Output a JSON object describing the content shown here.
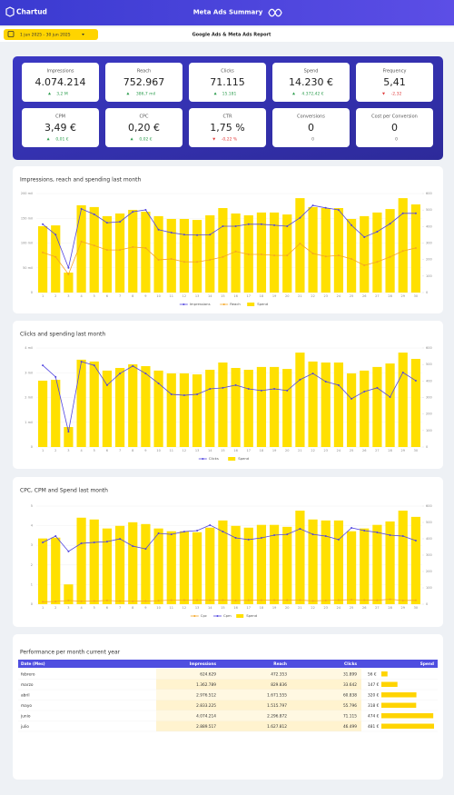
{
  "header": {
    "brand": "Chartud",
    "title": "Meta Ads Summary",
    "date_range": "1 jun 2025 - 30 jun 2025",
    "report": "Google Ads & Meta Ads Report"
  },
  "kpis": [
    {
      "label": "Impressions",
      "value": "4.074.214",
      "delta": "3,2 M",
      "direction": "up"
    },
    {
      "label": "Reach",
      "value": "752.967",
      "delta": "386,7 mil",
      "direction": "up"
    },
    {
      "label": "Clicks",
      "value": "71.115",
      "delta": "15.181",
      "direction": "up"
    },
    {
      "label": "Spend",
      "value": "14.230 €",
      "delta": "4.372,42 €",
      "direction": "up"
    },
    {
      "label": "Frequency",
      "value": "5,41",
      "delta": "-2,32",
      "direction": "down"
    },
    {
      "label": "CPM",
      "value": "3,49 €",
      "delta": "0,01 €",
      "direction": "up"
    },
    {
      "label": "CPC",
      "value": "0,20 €",
      "delta": "0,02 €",
      "direction": "up"
    },
    {
      "label": "CTR",
      "value": "1,75 %",
      "delta": "-0,22 %",
      "direction": "down"
    },
    {
      "label": "Conversions",
      "value": "0",
      "delta": "0"
    },
    {
      "label": "Cost per Conversion",
      "value": "0",
      "delta": "0"
    }
  ],
  "chart_data": [
    {
      "type": "combo",
      "title": "Impressions, reach and spending last month",
      "categories": [
        1,
        2,
        3,
        4,
        5,
        6,
        7,
        8,
        9,
        10,
        11,
        12,
        13,
        14,
        15,
        16,
        17,
        18,
        19,
        20,
        21,
        22,
        23,
        24,
        25,
        26,
        27,
        28,
        29,
        30
      ],
      "ylim": [
        0,
        200000
      ],
      "yticks": [
        0,
        {
          "value": 50000,
          "label": "50 mil"
        },
        {
          "value": 100000,
          "label": "100 mil"
        },
        {
          "value": 150000,
          "label": "150 mil"
        },
        {
          "value": 200000,
          "label": "200 mil"
        }
      ],
      "y2lim": [
        0,
        600
      ],
      "y2ticks": [
        0,
        100,
        200,
        300,
        400,
        500,
        600
      ],
      "grid": true,
      "series": [
        {
          "name": "Impressions",
          "type": "line",
          "color": "#5246e0",
          "values": [
            138000,
            117000,
            50000,
            169000,
            158000,
            141000,
            143000,
            163000,
            167000,
            127000,
            121000,
            117000,
            116000,
            117000,
            134000,
            134000,
            138000,
            138000,
            136000,
            134000,
            151000,
            176000,
            171000,
            167000,
            136000,
            112000,
            123000,
            139000,
            160000,
            160000
          ]
        },
        {
          "name": "Reach",
          "type": "line",
          "color": "#f5a623",
          "values": [
            81000,
            72000,
            37000,
            103000,
            95000,
            86000,
            86000,
            92000,
            90000,
            66000,
            68000,
            62000,
            62000,
            66000,
            72000,
            83000,
            77000,
            77000,
            75000,
            75000,
            99000,
            79000,
            73000,
            75000,
            68000,
            55000,
            62000,
            72000,
            84000,
            90000
          ]
        },
        {
          "name": "Spend",
          "type": "bar",
          "axis": "y2",
          "color": "#ffe000",
          "values": [
            402,
            407,
            121,
            529,
            518,
            463,
            479,
            501,
            490,
            463,
            446,
            446,
            440,
            468,
            512,
            479,
            468,
            485,
            485,
            473,
            572,
            518,
            512,
            512,
            446,
            463,
            485,
            506,
            572,
            534
          ]
        }
      ]
    },
    {
      "type": "combo",
      "title": "Clicks and spending last month",
      "categories": [
        1,
        2,
        3,
        4,
        5,
        6,
        7,
        8,
        9,
        10,
        11,
        12,
        13,
        14,
        15,
        16,
        17,
        18,
        19,
        20,
        21,
        22,
        23,
        24,
        25,
        26,
        27,
        28,
        29,
        30
      ],
      "ylim": [
        0,
        4000
      ],
      "yticks": [
        0,
        {
          "value": 1000,
          "label": "1 mil"
        },
        {
          "value": 2000,
          "label": "2 mil"
        },
        {
          "value": 3000,
          "label": "3 mil"
        },
        {
          "value": 4000,
          "label": "4 mil"
        }
      ],
      "y2lim": [
        0,
        600
      ],
      "y2ticks": [
        0,
        100,
        200,
        300,
        400,
        500,
        600
      ],
      "grid": true,
      "series": [
        {
          "name": "Clicks",
          "type": "line",
          "color": "#5246e0",
          "values": [
            3300,
            2830,
            620,
            3450,
            3300,
            2500,
            2970,
            3270,
            2970,
            2570,
            2130,
            2090,
            2130,
            2350,
            2390,
            2500,
            2350,
            2280,
            2350,
            2280,
            2720,
            2970,
            2640,
            2500,
            1950,
            2240,
            2390,
            2020,
            3010,
            2680
          ]
        },
        {
          "name": "Spend",
          "type": "bar",
          "axis": "y2",
          "color": "#ffe000",
          "values": [
            402,
            407,
            121,
            529,
            518,
            463,
            479,
            501,
            490,
            463,
            446,
            446,
            440,
            468,
            512,
            479,
            468,
            485,
            485,
            473,
            572,
            518,
            512,
            512,
            446,
            463,
            485,
            506,
            572,
            534
          ]
        }
      ]
    },
    {
      "type": "combo",
      "title": "CPC, CPM and Spend last month",
      "categories": [
        1,
        2,
        3,
        4,
        5,
        6,
        7,
        8,
        9,
        10,
        11,
        12,
        13,
        14,
        15,
        16,
        17,
        18,
        19,
        20,
        21,
        22,
        23,
        24,
        25,
        26,
        27,
        28,
        29,
        30
      ],
      "ylim": [
        0,
        5
      ],
      "yticks": [
        0,
        1,
        2,
        3,
        4,
        5
      ],
      "y2lim": [
        0,
        600
      ],
      "y2ticks": [
        0,
        100,
        200,
        300,
        400,
        500,
        600
      ],
      "grid": true,
      "series": [
        {
          "name": "Cpc",
          "type": "line",
          "color": "#f5a623",
          "values": [
            0.12,
            0.14,
            0.19,
            0.15,
            0.16,
            0.19,
            0.16,
            0.15,
            0.16,
            0.18,
            0.21,
            0.21,
            0.21,
            0.2,
            0.21,
            0.19,
            0.2,
            0.21,
            0.21,
            0.21,
            0.21,
            0.17,
            0.19,
            0.21,
            0.23,
            0.21,
            0.2,
            0.25,
            0.19,
            0.2
          ]
        },
        {
          "name": "Cpm",
          "type": "line",
          "color": "#5246e0",
          "values": [
            3.15,
            3.47,
            2.69,
            3.1,
            3.15,
            3.19,
            3.33,
            2.96,
            2.82,
            3.61,
            3.56,
            3.7,
            3.75,
            4.03,
            3.7,
            3.38,
            3.29,
            3.38,
            3.52,
            3.56,
            3.84,
            3.56,
            3.47,
            3.29,
            3.89,
            3.75,
            3.66,
            3.52,
            3.47,
            3.24
          ]
        },
        {
          "name": "Spend",
          "type": "bar",
          "axis": "y2",
          "color": "#ffe000",
          "values": [
            402,
            407,
            121,
            529,
            518,
            463,
            479,
            501,
            490,
            463,
            446,
            446,
            440,
            468,
            512,
            479,
            468,
            485,
            485,
            473,
            572,
            518,
            512,
            512,
            446,
            463,
            485,
            506,
            572,
            534
          ]
        }
      ]
    }
  ],
  "table": {
    "title": "Performance per month current year",
    "columns": [
      "Date (Mes)",
      "Impressions",
      "Reach",
      "Clicks",
      "Spend"
    ],
    "rows": [
      [
        "febrero",
        "624.629",
        "472.353",
        "31.899",
        "56 €"
      ],
      [
        "marzo",
        "1.362.789",
        "829.836",
        "33.642",
        "147 €"
      ],
      [
        "abril",
        "2.976.512",
        "1.671.555",
        "60.838",
        "320 €"
      ],
      [
        "mayo",
        "2.833.225",
        "1.515.797",
        "55.796",
        "318 €"
      ],
      [
        "junio",
        "4.074.214",
        "2.296.872",
        "71.115",
        "474 €"
      ],
      [
        "julio",
        "2.889.517",
        "1.627.812",
        "46.499",
        "481 €"
      ]
    ],
    "spend_values": [
      56,
      147,
      320,
      318,
      474,
      481
    ],
    "bar_color": "#ffd400"
  }
}
